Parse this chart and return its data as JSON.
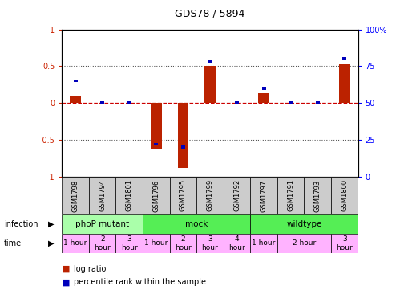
{
  "title": "GDS78 / 5894",
  "samples": [
    "GSM1798",
    "GSM1794",
    "GSM1801",
    "GSM1796",
    "GSM1795",
    "GSM1799",
    "GSM1792",
    "GSM1797",
    "GSM1791",
    "GSM1793",
    "GSM1800"
  ],
  "log_ratio": [
    0.1,
    0.0,
    0.0,
    -0.62,
    -0.88,
    0.5,
    0.0,
    0.13,
    0.0,
    0.0,
    0.53
  ],
  "percentile": [
    65,
    50,
    50,
    22,
    20,
    78,
    50,
    60,
    50,
    50,
    80
  ],
  "bar_color_red": "#BB2200",
  "bar_color_blue": "#0000BB",
  "zero_line_color": "#CC0000",
  "dotted_line_color": "#555555",
  "sample_box_color": "#CCCCCC",
  "ylim": [
    -1,
    1
  ],
  "right_ylim": [
    0,
    100
  ],
  "right_yticks": [
    0,
    25,
    50,
    75,
    100
  ],
  "right_yticklabels": [
    "0",
    "25",
    "50",
    "75",
    "100%"
  ],
  "left_yticks": [
    -1,
    -0.5,
    0,
    0.5,
    1
  ],
  "left_yticklabels": [
    "-1",
    "-0.5",
    "0",
    "0.5",
    "1"
  ],
  "hlines": [
    -0.5,
    0.5
  ],
  "infection_groups": [
    {
      "label": "phoP mutant",
      "start": 0,
      "end": 3,
      "color": "#AAFFAA"
    },
    {
      "label": "mock",
      "start": 3,
      "end": 7,
      "color": "#55EE55"
    },
    {
      "label": "wildtype",
      "start": 7,
      "end": 11,
      "color": "#55EE55"
    }
  ],
  "time_cells": [
    {
      "start": 0,
      "end": 1,
      "label": "1 hour"
    },
    {
      "start": 1,
      "end": 2,
      "label": "2\nhour"
    },
    {
      "start": 2,
      "end": 3,
      "label": "3\nhour"
    },
    {
      "start": 3,
      "end": 4,
      "label": "1 hour"
    },
    {
      "start": 4,
      "end": 5,
      "label": "2\nhour"
    },
    {
      "start": 5,
      "end": 6,
      "label": "3\nhour"
    },
    {
      "start": 6,
      "end": 7,
      "label": "4\nhour"
    },
    {
      "start": 7,
      "end": 8,
      "label": "1 hour"
    },
    {
      "start": 8,
      "end": 10,
      "label": "2 hour"
    },
    {
      "start": 10,
      "end": 11,
      "label": "3\nhour"
    }
  ],
  "time_color": "#FFB3FF"
}
